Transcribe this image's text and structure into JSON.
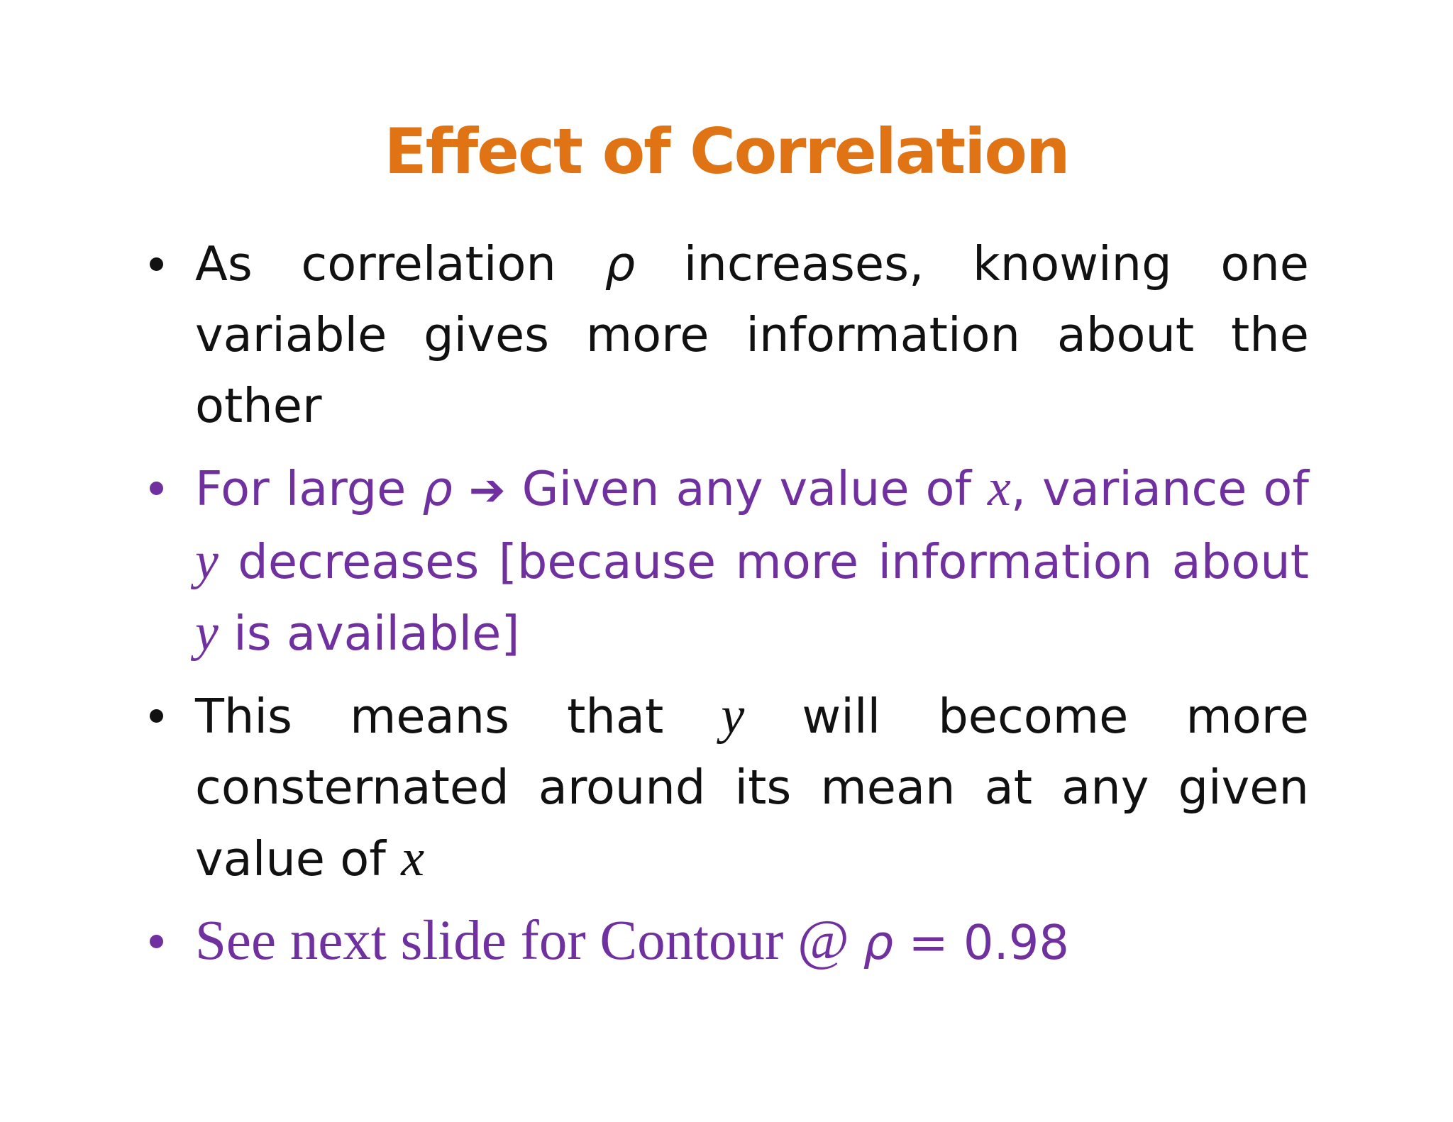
{
  "slide": {
    "title": "Effect of Correlation",
    "colors": {
      "title": "#e07314",
      "text": "#111111",
      "accent": "#7030a0"
    },
    "bullets": [
      {
        "parts": [
          {
            "t": "As correlation ",
            "s": "plain"
          },
          {
            "t": "ρ",
            "s": "rho"
          },
          {
            "t": " increases, knowing one variable gives more information about the other",
            "s": "plain"
          }
        ]
      },
      {
        "parts": [
          {
            "t": "For large ",
            "s": "plain"
          },
          {
            "t": "ρ",
            "s": "rho"
          },
          {
            "t": " ",
            "s": "plain"
          },
          {
            "t": "➔",
            "s": "arrow"
          },
          {
            "t": " Given any value of ",
            "s": "plain"
          },
          {
            "t": "x",
            "s": "math"
          },
          {
            "t": ", variance of ",
            "s": "plain"
          },
          {
            "t": "y",
            "s": "math"
          },
          {
            "t": " decreases [because more information about ",
            "s": "plain"
          },
          {
            "t": "y",
            "s": "math"
          },
          {
            "t": " is available]",
            "s": "plain"
          }
        ]
      },
      {
        "parts": [
          {
            "t": "This means that ",
            "s": "plain"
          },
          {
            "t": "y",
            "s": "math"
          },
          {
            "t": " will become more consternated around its mean at any given value of ",
            "s": "plain"
          },
          {
            "t": "x",
            "s": "math"
          }
        ]
      },
      {
        "parts": [
          {
            "t": "See next slide for Contour @ ",
            "s": "serif"
          },
          {
            "t": "ρ",
            "s": "rho"
          },
          {
            "t": " = 0.98",
            "s": "plain"
          }
        ]
      }
    ]
  }
}
